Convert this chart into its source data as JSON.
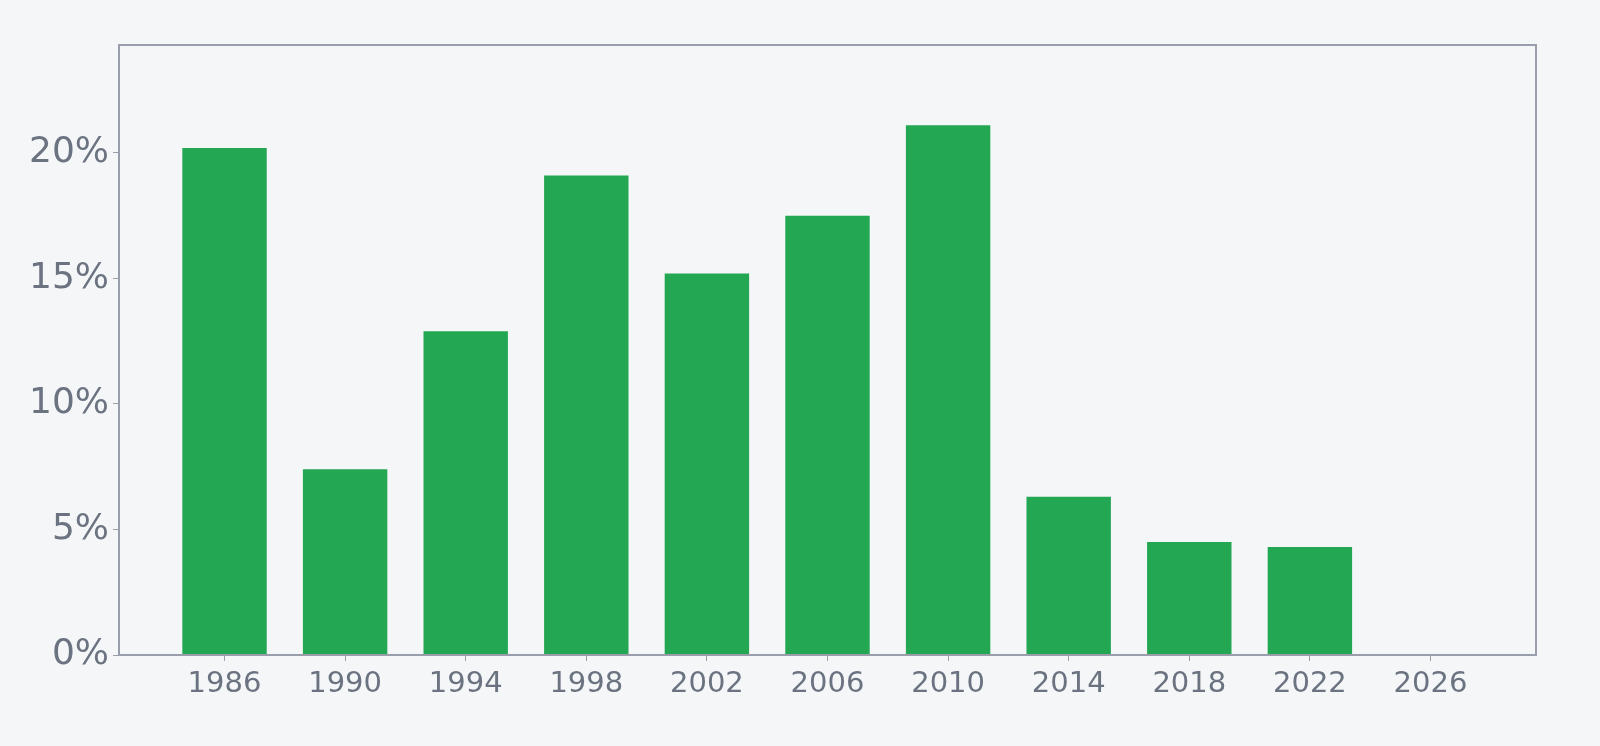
{
  "chart_data": {
    "type": "bar",
    "x": [
      1986,
      1990,
      1994,
      1998,
      2002,
      2006,
      2010,
      2014,
      2018,
      2022
    ],
    "values": [
      20.2,
      7.4,
      12.9,
      19.1,
      15.2,
      17.5,
      21.1,
      6.3,
      4.5,
      4.3
    ],
    "color": "#23a753",
    "xlim": [
      1982.5,
      2029.5
    ],
    "xticks": [
      1986,
      1990,
      1994,
      1998,
      2002,
      2006,
      2010,
      2014,
      2018,
      2022,
      2026
    ],
    "ylim": [
      0,
      24.3
    ],
    "yticks": [
      {
        "value": 0,
        "label": "0%"
      },
      {
        "value": 5,
        "label": "5%"
      },
      {
        "value": 10,
        "label": "10%"
      },
      {
        "value": 15,
        "label": "15%"
      },
      {
        "value": 20,
        "label": "20%"
      }
    ],
    "grid": false,
    "legend": false
  }
}
